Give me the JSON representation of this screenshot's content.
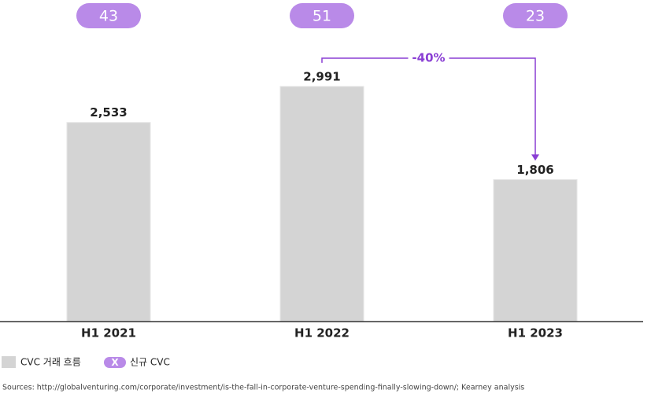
{
  "chart_data": {
    "type": "bar",
    "categories": [
      "H1 2021",
      "H1 2022",
      "H1 2023"
    ],
    "series": [
      {
        "name": "CVC 거래 흐름",
        "color": "#d4d4d4",
        "values": [
          2533,
          2991,
          1806
        ],
        "value_labels": [
          "2,533",
          "2,991",
          "1,806"
        ]
      },
      {
        "name": "신규 CVC",
        "color": "#b98ae8",
        "values": [
          43,
          51,
          23
        ]
      }
    ],
    "legend_marker_label": "X",
    "annotation": "-40%",
    "annotation_color": "#8a3fd4",
    "ylim": [
      0,
      4000
    ],
    "source": "Sources: http://globalventuring.com/corporate/investment/is-the-fall-in-corporate-venture-spending-finally-slowing-down/; Kearney analysis"
  }
}
